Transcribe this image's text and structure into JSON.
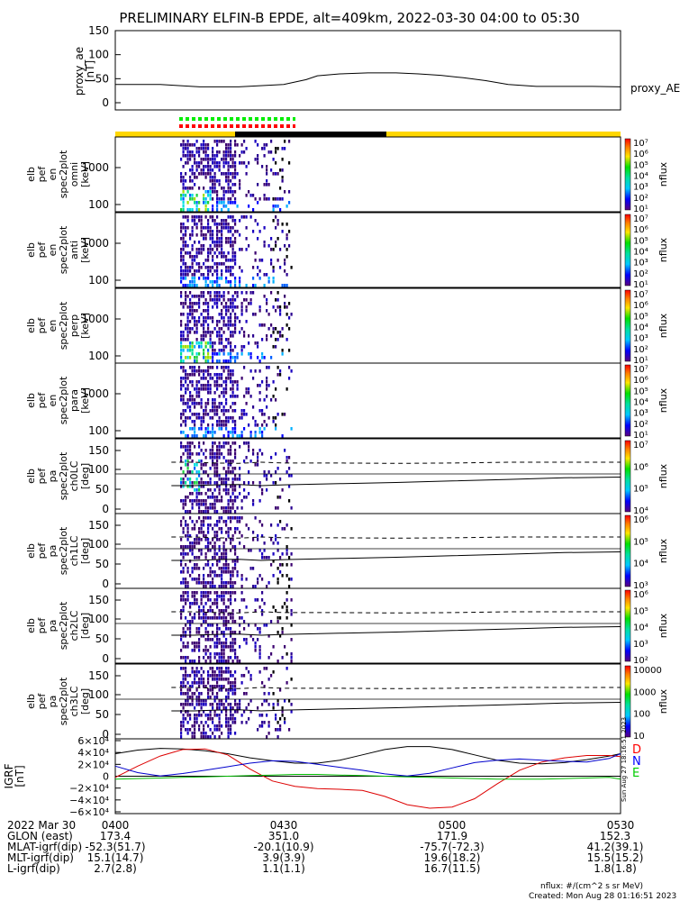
{
  "title": "PRELIMINARY ELFIN-B EPDE, alt=409km, 2022-03-30 04:00 to 05:30",
  "ae_panel": {
    "ylabel_lines": [
      "proxy_ae",
      "[nT]"
    ],
    "yticks": [
      "150",
      "100",
      "50",
      "0"
    ],
    "legend": "proxy_AE"
  },
  "spec_panels": [
    {
      "ylabel_lines": [
        "elb",
        "pef",
        "en",
        "spec2plot",
        "omni",
        "[keV]"
      ],
      "yticks": [
        "1000",
        "100"
      ]
    },
    {
      "ylabel_lines": [
        "elb",
        "pef",
        "en",
        "spec2plot",
        "anti",
        "[keV]"
      ],
      "yticks": [
        "1000",
        "100"
      ]
    },
    {
      "ylabel_lines": [
        "elb",
        "pef",
        "en",
        "spec2plot",
        "perp",
        "[keV]"
      ],
      "yticks": [
        "1000",
        "100"
      ]
    },
    {
      "ylabel_lines": [
        "elb",
        "pef",
        "en",
        "spec2plot",
        "para",
        "[keV]"
      ],
      "yticks": [
        "1000",
        "100"
      ]
    },
    {
      "ylabel_lines": [
        "elb",
        "pef",
        "pa",
        "spec2plot",
        "ch0LC",
        "[deg]"
      ],
      "yticks": [
        "150",
        "100",
        "50",
        "0"
      ]
    },
    {
      "ylabel_lines": [
        "elb",
        "pef",
        "pa",
        "spec2plot",
        "ch1LC",
        "[deg]"
      ],
      "yticks": [
        "150",
        "100",
        "50",
        "0"
      ]
    },
    {
      "ylabel_lines": [
        "elb",
        "pef",
        "pa",
        "spec2plot",
        "ch2LC",
        "[deg]"
      ],
      "yticks": [
        "150",
        "100",
        "50",
        "0"
      ]
    },
    {
      "ylabel_lines": [
        "elb",
        "pef",
        "pa",
        "spec2plot",
        "ch3LC",
        "[deg]"
      ],
      "yticks": [
        "150",
        "100",
        "50",
        "0"
      ]
    }
  ],
  "colorbars": [
    {
      "label": "nflux",
      "ticks": [
        "10⁷",
        "10⁶",
        "10⁵",
        "10⁴",
        "10³",
        "10²",
        "10¹"
      ]
    },
    {
      "label": "nflux",
      "ticks": [
        "10⁷",
        "10⁶",
        "10⁵",
        "10⁴",
        "10³",
        "10²",
        "10¹"
      ]
    },
    {
      "label": "nflux",
      "ticks": [
        "10⁷",
        "10⁶",
        "10⁵",
        "10⁴",
        "10³",
        "10²",
        "10¹"
      ]
    },
    {
      "label": "nflux",
      "ticks": [
        "10⁷",
        "10⁶",
        "10⁵",
        "10⁴",
        "10³",
        "10²",
        "10¹"
      ]
    },
    {
      "label": "nflux",
      "ticks": [
        "10⁷",
        "10⁶",
        "10⁵",
        "10⁴"
      ]
    },
    {
      "label": "nflux",
      "ticks": [
        "10⁶",
        "10⁵",
        "10⁴",
        "10³"
      ]
    },
    {
      "label": "nflux",
      "ticks": [
        "10⁶",
        "10⁵",
        "10⁴",
        "10³",
        "10²"
      ]
    },
    {
      "label": "nflux",
      "ticks": [
        "10000",
        "1000",
        "100",
        "10"
      ]
    }
  ],
  "igrf_panel": {
    "ylabel_lines": [
      "IGRF",
      "[nT]"
    ],
    "yticks": [
      "6×10⁴",
      "4×10⁴",
      "2×10⁴",
      "0",
      "−2×10⁴",
      "−4×10⁴",
      "−6×10⁴"
    ],
    "legend": [
      {
        "label": "D",
        "color": "#ff0000"
      },
      {
        "label": "N",
        "color": "#0000ff"
      },
      {
        "label": "E",
        "color": "#00cc00"
      }
    ],
    "side_note": "Sun Aug 27 18:16:51 2023"
  },
  "ephemeris": {
    "row_labels": [
      "2022 Mar 30",
      "GLON (east)",
      "MLAT-igrf(dip)",
      "MLT-igrf(dip)",
      "L-igrf(dip)"
    ],
    "columns": [
      {
        "time": "0400",
        "values": [
          "173.4",
          "-52.3(51.7)",
          "15.1(14.7)",
          "2.7(2.8)"
        ]
      },
      {
        "time": "0430",
        "values": [
          "351.0",
          "-20.1(10.9)",
          "3.9(3.9)",
          "1.1(1.1)"
        ]
      },
      {
        "time": "0500",
        "values": [
          "171.9",
          "-75.7(-72.3)",
          "19.6(18.2)",
          "16.7(11.5)"
        ]
      },
      {
        "time": "0530",
        "values": [
          "152.3",
          "41.2(39.1)",
          "15.5(15.2)",
          "1.8(1.8)"
        ]
      }
    ]
  },
  "footer": {
    "units": "nflux: #/(cm^2 s sr MeV)",
    "created": "Created: Mon Aug 28 01:16:51 2023"
  },
  "colors": {
    "bar_yellow": "#ffd700",
    "bar_black": "#000000",
    "dot_green": "#00ee00",
    "dot_red": "#ff0000"
  },
  "chart_data": {
    "type": "heatmap",
    "time_range": [
      "04:00",
      "05:30"
    ],
    "proxy_ae": {
      "name": "proxy_AE",
      "x_min": [
        0,
        8,
        15,
        22,
        30,
        34,
        36,
        40,
        45,
        50,
        54,
        58,
        62,
        66,
        70,
        75,
        80,
        85,
        90
      ],
      "y_nT": [
        38,
        38,
        33,
        33,
        38,
        48,
        56,
        60,
        62,
        62,
        60,
        57,
        52,
        46,
        38,
        34,
        34,
        34,
        33
      ],
      "ylim": [
        0,
        150
      ]
    },
    "igrf": {
      "ylim": [
        -60000,
        60000
      ],
      "x_min": [
        0,
        4,
        8,
        12,
        16,
        20,
        24,
        28,
        32,
        36,
        40,
        44,
        48,
        52,
        56,
        60,
        64,
        68,
        72,
        76,
        80,
        84,
        88,
        90
      ],
      "series": [
        {
          "name": "total",
          "values": [
            38000,
            44000,
            47000,
            46000,
            43000,
            38000,
            31000,
            26000,
            22000,
            22000,
            27000,
            36000,
            45000,
            50000,
            50000,
            45000,
            36000,
            27000,
            22000,
            21000,
            23000,
            28000,
            34000,
            38000
          ]
        },
        {
          "name": "D",
          "values": [
            -2000,
            17000,
            34000,
            45000,
            46000,
            36000,
            12000,
            -8000,
            -17000,
            -21000,
            -22000,
            -24000,
            -34000,
            -48000,
            -54000,
            -52000,
            -38000,
            -13000,
            10000,
            24000,
            31000,
            35000,
            35000,
            33000
          ]
        },
        {
          "name": "N",
          "values": [
            17000,
            6000,
            400,
            4500,
            10000,
            16000,
            22000,
            26000,
            25000,
            20000,
            15000,
            10000,
            4000,
            300,
            5000,
            14000,
            23000,
            27000,
            29000,
            27000,
            25000,
            24000,
            30000,
            38000
          ]
        },
        {
          "name": "E",
          "values": [
            -5000,
            -4000,
            -3000,
            -2000,
            -1000,
            0,
            1000,
            2000,
            3000,
            3000,
            2000,
            1000,
            0,
            -1000,
            -2000,
            -3000,
            -4000,
            -5000,
            -5000,
            -5000,
            -4000,
            -3000,
            -2000,
            -5000
          ]
        }
      ]
    },
    "pitch_angle_loss_cone": {
      "x_min": [
        10,
        14,
        18,
        22,
        26,
        30,
        40,
        50,
        60,
        70,
        80,
        90
      ],
      "loss_cone_deg": [
        60,
        60,
        62,
        63,
        60,
        62,
        65,
        68,
        72,
        76,
        80,
        82
      ],
      "anti_loss_cone_deg": [
        120,
        120,
        118,
        117,
        120,
        118,
        118,
        117,
        118,
        120,
        120,
        120
      ]
    }
  }
}
